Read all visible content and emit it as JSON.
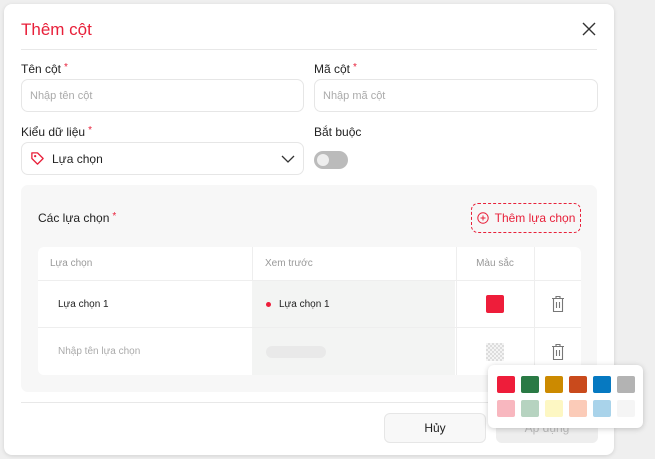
{
  "title": "Thêm cột",
  "fields": {
    "name_label": "Tên cột",
    "name_placeholder": "Nhập tên cột",
    "code_label": "Mã cột",
    "code_placeholder": "Nhập mã cột",
    "type_label": "Kiểu dữ liệu",
    "type_value": "Lựa chọn",
    "required_label": "Bắt buộc",
    "required_on": false,
    "asterisk": "*"
  },
  "options": {
    "label": "Các lựa chọn",
    "add_button": "Thêm lựa chọn",
    "columns": [
      "Lựa chọn",
      "Xem trước",
      "Màu sắc"
    ],
    "rows": [
      {
        "name": "Lựa chọn 1",
        "preview": "Lựa chọn 1",
        "color": "#ee1d3a"
      }
    ],
    "new_row_placeholder": "Nhập tên lựa chọn"
  },
  "palette": [
    "#ee1d3a",
    "#2a7a45",
    "#cc8a00",
    "#c94a1c",
    "#0679c1",
    "#b3b3b3",
    "#f8b7bf",
    "#b6d3c0",
    "#fdf7c3",
    "#fbcbb8",
    "#a9d3ea",
    "#f5f5f5"
  ],
  "footer": {
    "cancel": "Hủy",
    "apply": "Áp dụng"
  },
  "accent": "#e8203a"
}
